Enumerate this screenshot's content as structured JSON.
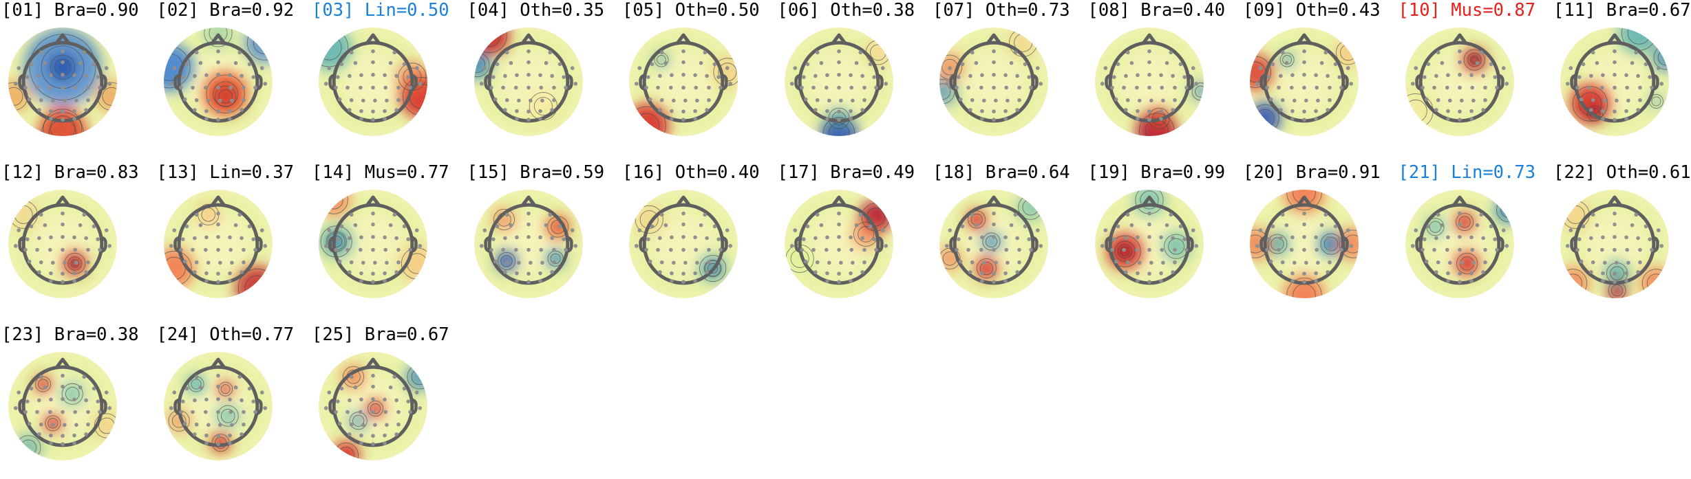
{
  "colors": {
    "default_label": "#000000",
    "line_label": "#1a80d9",
    "muscle_label": "#e8201c",
    "electrode": "#8f8f8f",
    "head_outline": "#5f5f5f",
    "contour": "#4a4a4a"
  },
  "colormap": "diverging red-yellow-blue (RdYlBu-like)",
  "components": [
    {
      "title": "[01] Bra=0.90",
      "color_key": "default_label",
      "pattern": "frontal-blue-occipital-red"
    },
    {
      "title": "[02] Bra=0.92",
      "color_key": "default_label",
      "pattern": "central-red-lateral-blue"
    },
    {
      "title": "[03] Lin=0.50",
      "color_key": "line_label",
      "pattern": "left-blue-right-red"
    },
    {
      "title": "[04] Oth=0.35",
      "color_key": "default_label",
      "pattern": "upper-left-edge"
    },
    {
      "title": "[05] Oth=0.50",
      "color_key": "default_label",
      "pattern": "lower-left-edge"
    },
    {
      "title": "[06] Oth=0.38",
      "color_key": "default_label",
      "pattern": "bottom-blue-edge"
    },
    {
      "title": "[07] Oth=0.73",
      "color_key": "default_label",
      "pattern": "left-edge-weak"
    },
    {
      "title": "[08] Bra=0.40",
      "color_key": "default_label",
      "pattern": "bottom-red"
    },
    {
      "title": "[09] Oth=0.43",
      "color_key": "default_label",
      "pattern": "mixed-edges"
    },
    {
      "title": "[10] Mus=0.87",
      "color_key": "muscle_label",
      "pattern": "right-frontal-red-spot"
    },
    {
      "title": "[11] Bra=0.67",
      "color_key": "default_label",
      "pattern": "left-red-blob"
    },
    {
      "title": "[12] Bra=0.83",
      "color_key": "default_label",
      "pattern": "right-red-spot"
    },
    {
      "title": "[13] Lin=0.37",
      "color_key": "default_label",
      "pattern": "lower-right-red-edge"
    },
    {
      "title": "[14] Mus=0.77",
      "color_key": "default_label",
      "pattern": "left-blue-spot"
    },
    {
      "title": "[15] Bra=0.59",
      "color_key": "default_label",
      "pattern": "bilateral-spots"
    },
    {
      "title": "[16] Oth=0.40",
      "color_key": "default_label",
      "pattern": "right-blue-spot"
    },
    {
      "title": "[17] Bra=0.49",
      "color_key": "default_label",
      "pattern": "upper-right-red-edge"
    },
    {
      "title": "[18] Bra=0.64",
      "color_key": "default_label",
      "pattern": "scattered-red-spots"
    },
    {
      "title": "[19] Bra=0.99",
      "color_key": "default_label",
      "pattern": "left-red-right-blue"
    },
    {
      "title": "[20] Bra=0.91",
      "color_key": "default_label",
      "pattern": "bilateral-blue-red-rim"
    },
    {
      "title": "[21] Lin=0.73",
      "color_key": "line_label",
      "pattern": "central-red-spots"
    },
    {
      "title": "[22] Oth=0.61",
      "color_key": "default_label",
      "pattern": "bottom-dipole"
    },
    {
      "title": "[23] Bra=0.38",
      "color_key": "default_label",
      "pattern": "left-red-spots"
    },
    {
      "title": "[24] Oth=0.77",
      "color_key": "default_label",
      "pattern": "central-mixed"
    },
    {
      "title": "[25] Bra=0.67",
      "color_key": "default_label",
      "pattern": "central-red-lower-left-red"
    }
  ]
}
